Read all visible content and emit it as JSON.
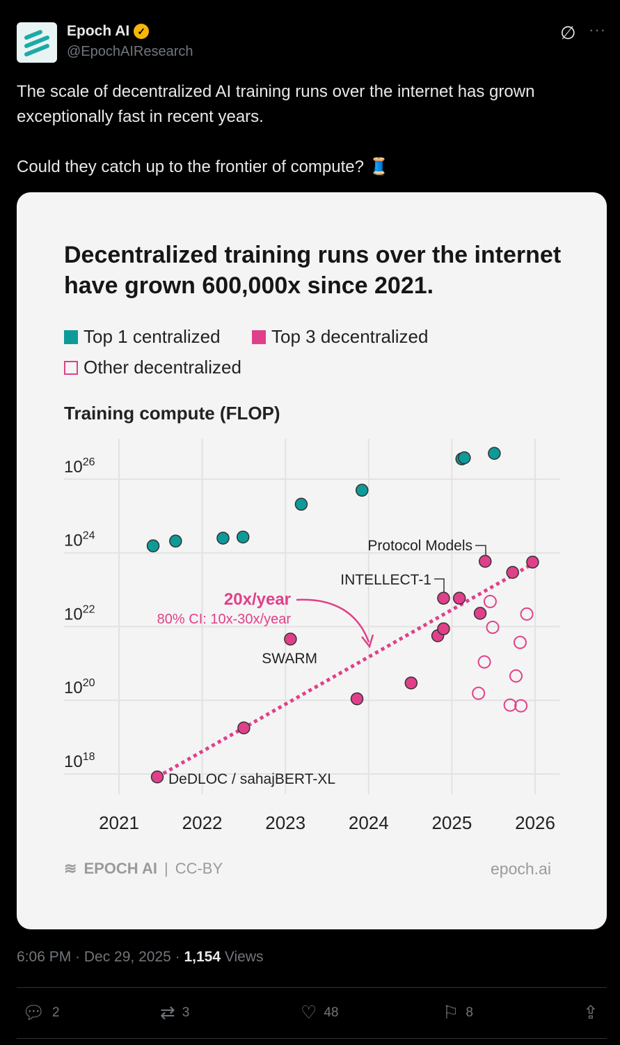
{
  "author": {
    "name": "Epoch AI",
    "handle": "@EpochAIResearch",
    "verified": true
  },
  "post": {
    "text_1": "The scale of decentralized AI training runs over the internet has grown exceptionally fast in recent years.",
    "text_2": "Could they catch up to the frontier of compute? 🧵"
  },
  "chart_data": {
    "type": "scatter",
    "title": "Decentralized training runs over the internet have grown 600,000x since 2021.",
    "ylabel": "Training compute (FLOP)",
    "xlabel": "",
    "y_scale": "log10",
    "xlim": [
      2020.4,
      2026.3
    ],
    "ylim": [
      17.5,
      27.0
    ],
    "x_ticks": [
      "2021",
      "2022",
      "2023",
      "2024",
      "2025",
      "2026"
    ],
    "y_ticks": [
      {
        "base": "10",
        "exp": "18"
      },
      {
        "base": "10",
        "exp": "20"
      },
      {
        "base": "10",
        "exp": "22"
      },
      {
        "base": "10",
        "exp": "24"
      },
      {
        "base": "10",
        "exp": "26"
      }
    ],
    "legend": [
      {
        "label": "Top 1 centralized",
        "color": "#0f9a9a",
        "style": "filled"
      },
      {
        "label": "Top 3 decentralized",
        "color": "#e0408a",
        "style": "filled"
      },
      {
        "label": "Other decentralized",
        "color": "#e0408a",
        "style": "open"
      }
    ],
    "series": [
      {
        "name": "Top 1 centralized",
        "points": [
          [
            2021.41,
            24.19
          ],
          [
            2021.68,
            24.32
          ],
          [
            2022.25,
            24.4
          ],
          [
            2022.49,
            24.43
          ],
          [
            2023.19,
            25.32
          ],
          [
            2023.92,
            25.7
          ],
          [
            2025.12,
            26.55
          ],
          [
            2025.15,
            26.58
          ],
          [
            2025.51,
            26.7
          ]
        ]
      },
      {
        "name": "Top 3 decentralized",
        "points": [
          [
            2021.46,
            17.92
          ],
          [
            2022.5,
            19.25
          ],
          [
            2023.06,
            21.66
          ],
          [
            2023.86,
            20.04
          ],
          [
            2024.51,
            20.47
          ],
          [
            2024.83,
            21.75
          ],
          [
            2024.9,
            21.94
          ],
          [
            2024.9,
            22.77
          ],
          [
            2025.09,
            22.77
          ],
          [
            2025.34,
            22.36
          ],
          [
            2025.4,
            23.77
          ],
          [
            2025.73,
            23.47
          ],
          [
            2025.97,
            23.75
          ]
        ]
      },
      {
        "name": "Other decentralized",
        "points": [
          [
            2025.46,
            22.68
          ],
          [
            2025.49,
            21.98
          ],
          [
            2025.9,
            22.34
          ],
          [
            2025.82,
            21.57
          ],
          [
            2025.39,
            21.04
          ],
          [
            2025.77,
            20.66
          ],
          [
            2025.32,
            20.19
          ],
          [
            2025.7,
            19.87
          ],
          [
            2025.83,
            19.85
          ]
        ]
      }
    ],
    "trend": {
      "from": [
        2021.46,
        17.92
      ],
      "to": [
        2025.97,
        23.7
      ],
      "label": "20x/year",
      "ci_label": "80% CI: 10x-30x/year"
    },
    "annotations": [
      {
        "label": "DeDLOC / sahajBERT-XL",
        "point": [
          2021.46,
          17.92
        ]
      },
      {
        "label": "SWARM",
        "point": [
          2023.06,
          21.66
        ]
      },
      {
        "label": "INTELLECT-1",
        "point": [
          2024.9,
          22.77
        ]
      },
      {
        "label": "Protocol Models",
        "point": [
          2025.4,
          23.77
        ]
      }
    ],
    "footer": {
      "brand": "EPOCH AI",
      "license": "CC-BY",
      "site": "epoch.ai"
    }
  },
  "meta": {
    "time": "6:06 PM · Dec 29, 2025 · ",
    "views": "1,154",
    "views_label": " Views"
  },
  "actions": {
    "replies": "2",
    "reposts": "3",
    "likes": "48",
    "bookmarks": "8"
  }
}
